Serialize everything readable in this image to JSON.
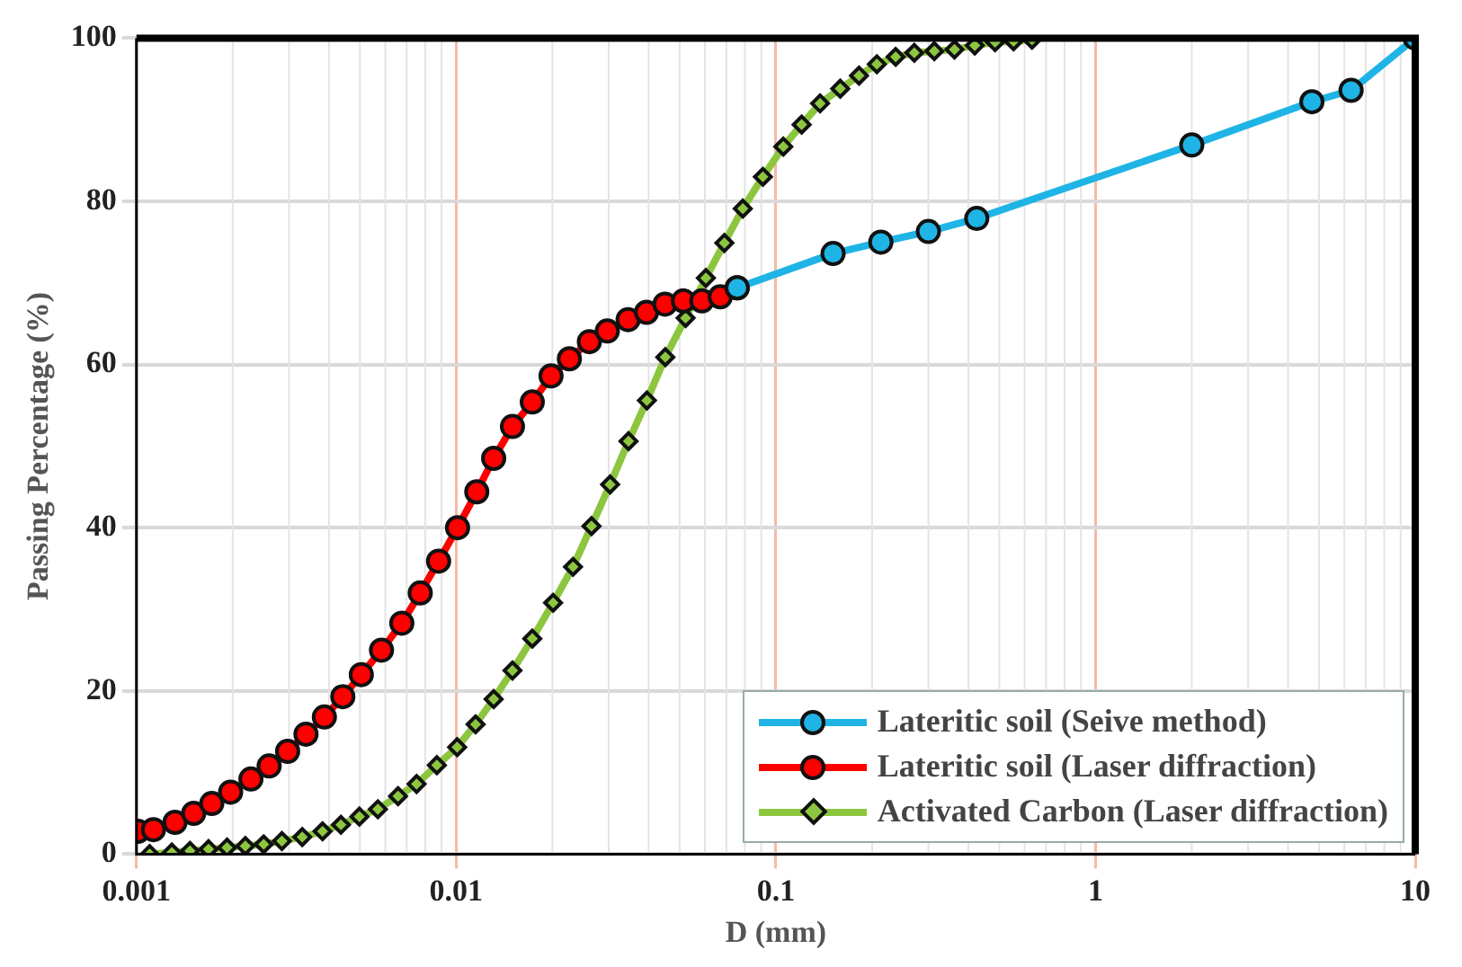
{
  "chart_data": {
    "type": "line",
    "xlabel": "D (mm)",
    "ylabel": "Passing Percentage (%)",
    "log": "x",
    "xlim": [
      0.001,
      10
    ],
    "xticks": [
      0.001,
      0.01,
      0.1,
      1,
      10
    ],
    "ylim": [
      0,
      100
    ],
    "yticks": [
      0,
      20,
      40,
      60,
      80,
      100
    ],
    "grid": true,
    "legend": "bottom right",
    "line_style": "solid",
    "series": [
      {
        "name": "Lateritic soil (Seive method)",
        "color": "#1fb4e6",
        "marker": "circle",
        "x": [
          0.0757,
          0.151,
          0.213,
          0.3,
          0.425,
          2.0,
          4.75,
          6.3,
          10
        ],
        "values": [
          69.4,
          73.6,
          75,
          76.3,
          77.9,
          86.9,
          92.2,
          93.6,
          100
        ]
      },
      {
        "name": "Lateritic soil (Laser diffraction)",
        "color": "#ff0000",
        "marker": "circle",
        "x": [
          0.00101,
          0.00113,
          0.00132,
          0.00151,
          0.00172,
          0.00197,
          0.00228,
          0.0026,
          0.00297,
          0.00339,
          0.00387,
          0.00442,
          0.00505,
          0.00584,
          0.00676,
          0.00772,
          0.00881,
          0.0101,
          0.0116,
          0.0131,
          0.015,
          0.0173,
          0.0198,
          0.0226,
          0.0261,
          0.0297,
          0.0345,
          0.0394,
          0.045,
          0.0514,
          0.0587,
          0.067,
          0.0757
        ],
        "values": [
          2.8,
          3,
          3.9,
          5,
          6.2,
          7.6,
          9.2,
          10.8,
          12.6,
          14.7,
          16.8,
          19.3,
          22,
          25,
          28.3,
          32,
          35.9,
          40,
          44.4,
          48.5,
          52.4,
          55.4,
          58.6,
          60.7,
          62.8,
          64.1,
          65.5,
          66.4,
          67.4,
          67.8,
          67.8,
          68.3,
          69.4
        ]
      },
      {
        "name": "Activated Carbon (Laser diffraction)",
        "color": "#8cc63f",
        "marker": "diamond",
        "x": [
          0.0011,
          0.00129,
          0.00147,
          0.00168,
          0.00192,
          0.00219,
          0.0025,
          0.00285,
          0.0033,
          0.00382,
          0.00436,
          0.00498,
          0.00569,
          0.00658,
          0.00752,
          0.0087,
          0.01007,
          0.0115,
          0.0131,
          0.015,
          0.0173,
          0.0201,
          0.0232,
          0.0265,
          0.0303,
          0.0346,
          0.0395,
          0.0451,
          0.0522,
          0.0604,
          0.069,
          0.0788,
          0.0911,
          0.1055,
          0.1204,
          0.1375,
          0.159,
          0.182,
          0.207,
          0.237,
          0.271,
          0.313,
          0.362,
          0.419,
          0.485,
          0.554,
          0.633
        ],
        "values": [
          0,
          0.2,
          0.4,
          0.6,
          0.8,
          1,
          1.2,
          1.6,
          2.1,
          2.8,
          3.6,
          4.6,
          5.5,
          7.1,
          8.6,
          10.9,
          13.1,
          15.9,
          19,
          22.5,
          26.4,
          30.8,
          35.2,
          40.2,
          45.3,
          50.6,
          55.6,
          60.9,
          65.7,
          70.6,
          74.9,
          79.1,
          83,
          86.7,
          89.4,
          92,
          93.8,
          95.4,
          96.8,
          97.7,
          98.2,
          98.4,
          98.6,
          99.1,
          99.5,
          99.6,
          99.8
        ]
      }
    ]
  }
}
